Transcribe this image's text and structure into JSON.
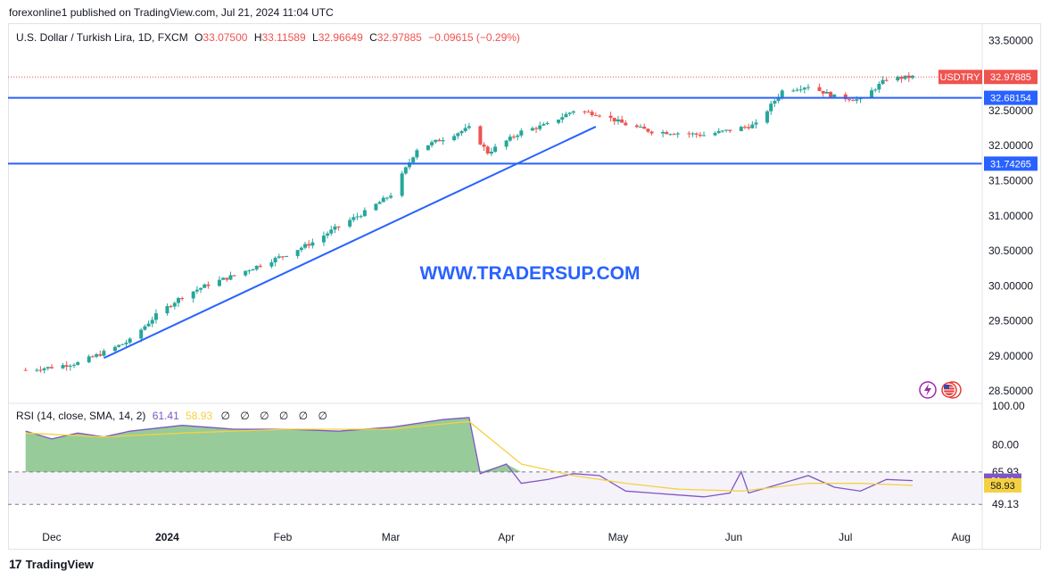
{
  "header": {
    "published": "forexonline1 published on TradingView.com, Jul 21, 2024 11:04 UTC"
  },
  "legend": {
    "symbol": "U.S. Dollar / Turkish Lira, 1D, FXCM",
    "o_label": "O",
    "o_value": "33.07500",
    "h_label": "H",
    "h_value": "33.11589",
    "l_label": "L",
    "l_value": "32.96649",
    "c_label": "C",
    "c_value": "32.97885",
    "change": "−0.09615 (−0.29%)"
  },
  "watermark": "WWW.TRADERSUP.COM",
  "rsi_legend": {
    "label": "RSI (14, close, SMA, 14, 2)",
    "rsi_value": "61.41",
    "sma_value": "58.93",
    "empty": [
      "∅",
      "∅",
      "∅",
      "∅",
      "∅",
      "∅"
    ]
  },
  "footer": {
    "brand": "TradingView"
  },
  "colors": {
    "up": "#26a69a",
    "down": "#ef5350",
    "line": "#2962ff",
    "rsi": "#7e57c2",
    "rsi_sma": "#f5d142",
    "axis_text": "#131722"
  },
  "chart_data": [
    {
      "type": "candlestick",
      "symbol": "USDTRY",
      "timeframe": "1D",
      "y_axis_labels": [
        "33.50000",
        "33.00000",
        "32.50000",
        "32.00000",
        "31.50000",
        "31.00000",
        "30.50000",
        "30.00000",
        "29.50000",
        "29.00000",
        "28.50000"
      ],
      "ylim": [
        28.35,
        33.72
      ],
      "x_axis_labels": [
        "Dec",
        "2024",
        "Feb",
        "Mar",
        "Apr",
        "May",
        "Jun",
        "Jul",
        "Aug"
      ],
      "price_tags": [
        {
          "label": "USDTRY",
          "value": "32.97885"
        },
        {
          "value": "32.68154"
        },
        {
          "value": "31.74265"
        }
      ],
      "horizontal_lines": [
        32.68154,
        31.74265
      ],
      "trendline": {
        "from": [
          "2023-12-15",
          28.97
        ],
        "to": [
          "2024-04-25",
          32.27
        ]
      },
      "last_close": 32.97885,
      "ohlc_anchors": [
        [
          "2023-11-24",
          28.8
        ],
        [
          "2023-12-01",
          28.84
        ],
        [
          "2023-12-08",
          28.9
        ],
        [
          "2023-12-15",
          29.05
        ],
        [
          "2023-12-22",
          29.22
        ],
        [
          "2023-12-29",
          29.58
        ],
        [
          "2024-01-05",
          29.85
        ],
        [
          "2024-01-12",
          30.02
        ],
        [
          "2024-01-19",
          30.15
        ],
        [
          "2024-01-26",
          30.3
        ],
        [
          "2024-02-02",
          30.45
        ],
        [
          "2024-02-09",
          30.62
        ],
        [
          "2024-02-16",
          30.85
        ],
        [
          "2024-02-23",
          31.05
        ],
        [
          "2024-03-01",
          31.3
        ],
        [
          "2024-03-08",
          31.95
        ],
        [
          "2024-03-15",
          32.1
        ],
        [
          "2024-03-22",
          32.25
        ],
        [
          "2024-03-27",
          31.9
        ],
        [
          "2024-04-05",
          32.2
        ],
        [
          "2024-04-12",
          32.3
        ],
        [
          "2024-04-19",
          32.5
        ],
        [
          "2024-04-26",
          32.45
        ],
        [
          "2024-05-03",
          32.3
        ],
        [
          "2024-05-10",
          32.2
        ],
        [
          "2024-05-17",
          32.18
        ],
        [
          "2024-05-24",
          32.15
        ],
        [
          "2024-05-31",
          32.22
        ],
        [
          "2024-06-07",
          32.3
        ],
        [
          "2024-06-14",
          32.78
        ],
        [
          "2024-06-21",
          32.85
        ],
        [
          "2024-06-28",
          32.7
        ],
        [
          "2024-07-05",
          32.65
        ],
        [
          "2024-07-12",
          32.95
        ],
        [
          "2024-07-19",
          32.98
        ]
      ]
    },
    {
      "type": "line",
      "title": "RSI (14, close, SMA, 14, 2)",
      "y_axis_labels": [
        "100.00",
        "80.00",
        "65.93",
        "61.41",
        "58.93",
        "49.13"
      ],
      "ylim": [
        40,
        100
      ],
      "bands": [
        65.93,
        49.13
      ],
      "series": [
        {
          "name": "RSI",
          "color": "#7e57c2",
          "points": [
            [
              "2023-11-24",
              87
            ],
            [
              "2023-12-01",
              83
            ],
            [
              "2023-12-08",
              86
            ],
            [
              "2023-12-15",
              84
            ],
            [
              "2023-12-22",
              87
            ],
            [
              "2024-01-05",
              90
            ],
            [
              "2024-01-19",
              88
            ],
            [
              "2024-02-02",
              88
            ],
            [
              "2024-02-16",
              87
            ],
            [
              "2024-03-01",
              89
            ],
            [
              "2024-03-15",
              93
            ],
            [
              "2024-03-22",
              94
            ],
            [
              "2024-03-25",
              65
            ],
            [
              "2024-04-01",
              70
            ],
            [
              "2024-04-05",
              60
            ],
            [
              "2024-04-12",
              62
            ],
            [
              "2024-04-19",
              65
            ],
            [
              "2024-04-26",
              64
            ],
            [
              "2024-05-03",
              56
            ],
            [
              "2024-05-10",
              55
            ],
            [
              "2024-05-17",
              54
            ],
            [
              "2024-05-24",
              53
            ],
            [
              "2024-05-31",
              55
            ],
            [
              "2024-06-03",
              66
            ],
            [
              "2024-06-05",
              55
            ],
            [
              "2024-06-14",
              60
            ],
            [
              "2024-06-21",
              64
            ],
            [
              "2024-06-28",
              58
            ],
            [
              "2024-07-05",
              56
            ],
            [
              "2024-07-12",
              62
            ],
            [
              "2024-07-19",
              61.41
            ]
          ]
        },
        {
          "name": "SMA",
          "color": "#f5d142",
          "points": [
            [
              "2023-11-24",
              86
            ],
            [
              "2023-12-15",
              84
            ],
            [
              "2024-01-05",
              86
            ],
            [
              "2024-02-02",
              88
            ],
            [
              "2024-03-01",
              88
            ],
            [
              "2024-03-22",
              92
            ],
            [
              "2024-04-05",
              70
            ],
            [
              "2024-04-19",
              64
            ],
            [
              "2024-05-03",
              60
            ],
            [
              "2024-05-17",
              57
            ],
            [
              "2024-06-03",
              56
            ],
            [
              "2024-06-21",
              60
            ],
            [
              "2024-07-05",
              60
            ],
            [
              "2024-07-19",
              58.93
            ]
          ]
        }
      ]
    }
  ]
}
